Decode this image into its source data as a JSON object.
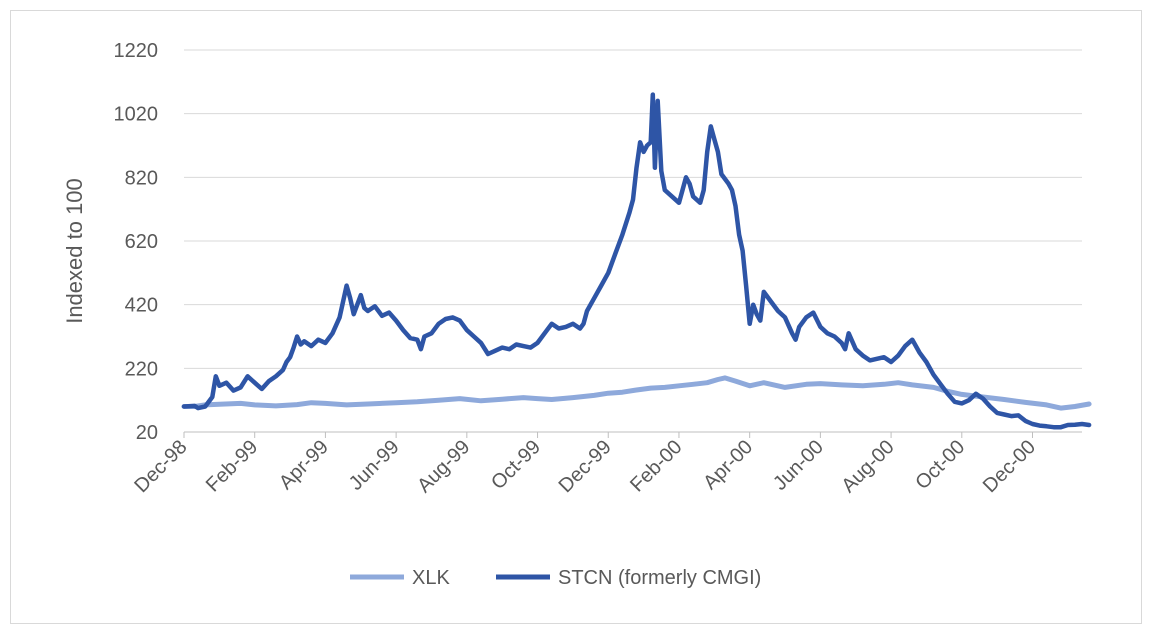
{
  "chart_data": {
    "type": "line",
    "title": "",
    "xlabel": "",
    "ylabel": "Indexed to 100",
    "ylim": [
      20,
      1220
    ],
    "yticks": [
      20,
      220,
      420,
      620,
      820,
      1020,
      1220
    ],
    "grid": true,
    "legend_position": "bottom",
    "x_start": "Dec-98",
    "x_tick_labels": [
      "Dec-98",
      "Feb-99",
      "Apr-99",
      "Jun-99",
      "Aug-99",
      "Oct-99",
      "Dec-99",
      "Feb-00",
      "Apr-00",
      "Jun-00",
      "Aug-00",
      "Oct-00",
      "Dec-00"
    ],
    "series": [
      {
        "name": "XLK",
        "color": "#8EA9DB",
        "points": [
          [
            0,
            100
          ],
          [
            0.15,
            100
          ],
          [
            0.3,
            105
          ],
          [
            0.5,
            107
          ],
          [
            0.8,
            110
          ],
          [
            1.0,
            105
          ],
          [
            1.3,
            102
          ],
          [
            1.6,
            106
          ],
          [
            1.8,
            112
          ],
          [
            2.0,
            110
          ],
          [
            2.3,
            105
          ],
          [
            2.6,
            108
          ],
          [
            3.0,
            112
          ],
          [
            3.3,
            115
          ],
          [
            3.6,
            120
          ],
          [
            3.9,
            125
          ],
          [
            4.2,
            118
          ],
          [
            4.5,
            123
          ],
          [
            4.8,
            128
          ],
          [
            5.0,
            125
          ],
          [
            5.2,
            122
          ],
          [
            5.5,
            128
          ],
          [
            5.8,
            135
          ],
          [
            6.0,
            142
          ],
          [
            6.2,
            145
          ],
          [
            6.4,
            152
          ],
          [
            6.6,
            158
          ],
          [
            6.8,
            160
          ],
          [
            7.0,
            165
          ],
          [
            7.2,
            170
          ],
          [
            7.4,
            175
          ],
          [
            7.55,
            185
          ],
          [
            7.65,
            190
          ],
          [
            7.8,
            180
          ],
          [
            8.0,
            165
          ],
          [
            8.2,
            175
          ],
          [
            8.5,
            160
          ],
          [
            8.8,
            170
          ],
          [
            9.0,
            172
          ],
          [
            9.3,
            168
          ],
          [
            9.6,
            165
          ],
          [
            9.9,
            170
          ],
          [
            10.1,
            175
          ],
          [
            10.3,
            168
          ],
          [
            10.6,
            160
          ],
          [
            10.8,
            148
          ],
          [
            11.0,
            138
          ],
          [
            11.3,
            130
          ],
          [
            11.6,
            122
          ],
          [
            11.9,
            113
          ],
          [
            12.2,
            105
          ],
          [
            12.4,
            95
          ],
          [
            12.6,
            100
          ],
          [
            12.8,
            108
          ]
        ]
      },
      {
        "name": "STCN (formerly CMGI)",
        "color": "#2E55A6",
        "points": [
          [
            0,
            100
          ],
          [
            0.15,
            102
          ],
          [
            0.2,
            95
          ],
          [
            0.3,
            100
          ],
          [
            0.4,
            130
          ],
          [
            0.45,
            195
          ],
          [
            0.5,
            165
          ],
          [
            0.6,
            175
          ],
          [
            0.7,
            150
          ],
          [
            0.8,
            160
          ],
          [
            0.9,
            195
          ],
          [
            1.0,
            175
          ],
          [
            1.1,
            155
          ],
          [
            1.2,
            180
          ],
          [
            1.3,
            195
          ],
          [
            1.4,
            215
          ],
          [
            1.45,
            240
          ],
          [
            1.5,
            255
          ],
          [
            1.55,
            285
          ],
          [
            1.6,
            320
          ],
          [
            1.65,
            295
          ],
          [
            1.7,
            305
          ],
          [
            1.8,
            290
          ],
          [
            1.9,
            310
          ],
          [
            2.0,
            300
          ],
          [
            2.1,
            330
          ],
          [
            2.2,
            380
          ],
          [
            2.25,
            430
          ],
          [
            2.3,
            480
          ],
          [
            2.35,
            440
          ],
          [
            2.4,
            390
          ],
          [
            2.5,
            450
          ],
          [
            2.55,
            410
          ],
          [
            2.6,
            400
          ],
          [
            2.7,
            415
          ],
          [
            2.8,
            385
          ],
          [
            2.9,
            395
          ],
          [
            3.0,
            370
          ],
          [
            3.1,
            340
          ],
          [
            3.2,
            315
          ],
          [
            3.3,
            310
          ],
          [
            3.35,
            280
          ],
          [
            3.4,
            320
          ],
          [
            3.5,
            330
          ],
          [
            3.6,
            360
          ],
          [
            3.7,
            375
          ],
          [
            3.8,
            380
          ],
          [
            3.9,
            370
          ],
          [
            4.0,
            340
          ],
          [
            4.1,
            320
          ],
          [
            4.2,
            300
          ],
          [
            4.3,
            265
          ],
          [
            4.4,
            275
          ],
          [
            4.5,
            285
          ],
          [
            4.6,
            280
          ],
          [
            4.7,
            295
          ],
          [
            4.8,
            290
          ],
          [
            4.9,
            285
          ],
          [
            5.0,
            300
          ],
          [
            5.1,
            330
          ],
          [
            5.2,
            360
          ],
          [
            5.3,
            345
          ],
          [
            5.4,
            350
          ],
          [
            5.5,
            360
          ],
          [
            5.6,
            345
          ],
          [
            5.65,
            360
          ],
          [
            5.7,
            400
          ],
          [
            5.8,
            440
          ],
          [
            5.9,
            480
          ],
          [
            6.0,
            520
          ],
          [
            6.1,
            580
          ],
          [
            6.2,
            640
          ],
          [
            6.3,
            710
          ],
          [
            6.35,
            750
          ],
          [
            6.4,
            850
          ],
          [
            6.45,
            930
          ],
          [
            6.5,
            900
          ],
          [
            6.55,
            920
          ],
          [
            6.6,
            930
          ],
          [
            6.63,
            1080
          ],
          [
            6.66,
            850
          ],
          [
            6.7,
            1060
          ],
          [
            6.75,
            840
          ],
          [
            6.8,
            780
          ],
          [
            6.9,
            760
          ],
          [
            7.0,
            740
          ],
          [
            7.05,
            780
          ],
          [
            7.1,
            820
          ],
          [
            7.15,
            800
          ],
          [
            7.2,
            760
          ],
          [
            7.3,
            740
          ],
          [
            7.35,
            780
          ],
          [
            7.4,
            900
          ],
          [
            7.45,
            980
          ],
          [
            7.5,
            940
          ],
          [
            7.55,
            900
          ],
          [
            7.6,
            830
          ],
          [
            7.7,
            800
          ],
          [
            7.75,
            780
          ],
          [
            7.8,
            730
          ],
          [
            7.85,
            640
          ],
          [
            7.9,
            590
          ],
          [
            7.95,
            480
          ],
          [
            8.0,
            360
          ],
          [
            8.05,
            420
          ],
          [
            8.1,
            390
          ],
          [
            8.15,
            370
          ],
          [
            8.2,
            460
          ],
          [
            8.3,
            430
          ],
          [
            8.4,
            400
          ],
          [
            8.5,
            380
          ],
          [
            8.6,
            330
          ],
          [
            8.65,
            310
          ],
          [
            8.7,
            350
          ],
          [
            8.8,
            380
          ],
          [
            8.9,
            395
          ],
          [
            9.0,
            350
          ],
          [
            9.1,
            330
          ],
          [
            9.2,
            320
          ],
          [
            9.3,
            300
          ],
          [
            9.35,
            280
          ],
          [
            9.4,
            330
          ],
          [
            9.5,
            280
          ],
          [
            9.6,
            260
          ],
          [
            9.7,
            245
          ],
          [
            9.8,
            250
          ],
          [
            9.9,
            255
          ],
          [
            10.0,
            240
          ],
          [
            10.1,
            260
          ],
          [
            10.2,
            290
          ],
          [
            10.3,
            310
          ],
          [
            10.4,
            270
          ],
          [
            10.5,
            240
          ],
          [
            10.6,
            200
          ],
          [
            10.7,
            170
          ],
          [
            10.8,
            140
          ],
          [
            10.9,
            115
          ],
          [
            11.0,
            110
          ],
          [
            11.1,
            120
          ],
          [
            11.2,
            140
          ],
          [
            11.3,
            125
          ],
          [
            11.4,
            100
          ],
          [
            11.5,
            80
          ],
          [
            11.6,
            75
          ],
          [
            11.7,
            70
          ],
          [
            11.8,
            72
          ],
          [
            11.9,
            55
          ],
          [
            12.0,
            45
          ],
          [
            12.1,
            40
          ],
          [
            12.2,
            38
          ],
          [
            12.3,
            35
          ],
          [
            12.4,
            35
          ],
          [
            12.5,
            42
          ],
          [
            12.6,
            43
          ],
          [
            12.7,
            45
          ],
          [
            12.8,
            42
          ]
        ]
      }
    ]
  }
}
